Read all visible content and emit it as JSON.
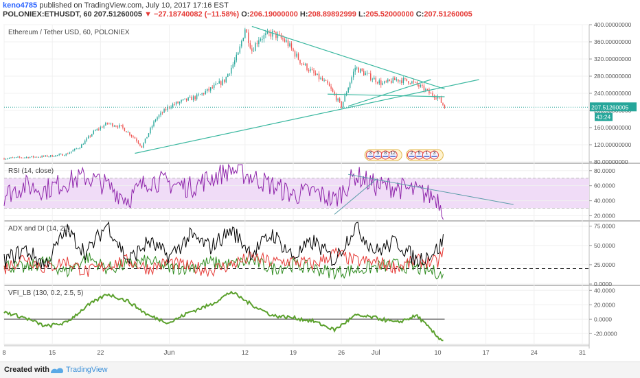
{
  "header": {
    "user": "keno4785",
    "published": "published on TradingView.com, July 10, 2017 17:16 EST",
    "symbol": "POLONIEX:ETHUSDT, 60",
    "last": "207.51260005",
    "change": "−27.18740082 (−11.58%)",
    "o_label": "O:",
    "o_value": "206.19000000",
    "h_label": "H:",
    "h_value": "208.89892999",
    "l_label": "L:",
    "l_value": "205.52000000",
    "c_label": "C:",
    "c_value": "207.51260005"
  },
  "footer": {
    "created": "Created with",
    "brand": "TradingView"
  },
  "colors": {
    "up": "#26a69a",
    "down": "#ef5350",
    "trend": "#3bb8a0",
    "rsi": "#8e24aa",
    "rsi_band": "#f0dcf7",
    "adx": "#000000",
    "di_plus": "#2e8b1f",
    "di_minus": "#e53935",
    "vfi": "#5aa02c",
    "price_label_bg": "#26a69a"
  },
  "chart_data": [
    {
      "type": "candlestick",
      "title": "Ethereum / Tether USD, 60, POLONIEX",
      "xlabel": "",
      "ylabel": "",
      "x_ticks": [
        "8",
        "15",
        "22",
        "Jun",
        "12",
        "19",
        "26",
        "Jul",
        "10",
        "17",
        "24",
        "31"
      ],
      "y_ticks": [
        "400.00000000",
        "360.00000000",
        "320.00000000",
        "280.00000000",
        "240.00000000",
        "200.00000000",
        "160.00000000",
        "120.00000000",
        "80.00000000"
      ],
      "ylim": [
        80,
        400
      ],
      "last_price_label": "207.51260005",
      "countdown_label": "43:24",
      "x": [
        "May 8",
        "May 10",
        "May 13",
        "May 15",
        "May 17",
        "May 19",
        "May 21",
        "May 23",
        "May 25",
        "May 27",
        "May 28",
        "May 30",
        "Jun 1",
        "Jun 3",
        "Jun 5",
        "Jun 7",
        "Jun 9",
        "Jun 11",
        "Jun 12",
        "Jun 13",
        "Jun 14",
        "Jun 16",
        "Jun 18",
        "Jun 20",
        "Jun 22",
        "Jun 24",
        "Jun 26",
        "Jun 27",
        "Jun 28",
        "Jun 30",
        "Jul 2",
        "Jul 4",
        "Jul 6",
        "Jul 8",
        "Jul 9",
        "Jul 10",
        "Jul 11"
      ],
      "close": [
        88,
        90,
        92,
        94,
        98,
        115,
        150,
        170,
        162,
        135,
        115,
        180,
        210,
        222,
        232,
        250,
        270,
        330,
        392,
        340,
        368,
        380,
        360,
        315,
        285,
        260,
        210,
        255,
        300,
        280,
        262,
        272,
        268,
        250,
        238,
        232,
        207
      ],
      "trendlines": [
        {
          "x": [
            "May 27",
            "Jul 16"
          ],
          "y": [
            100,
            272
          ]
        },
        {
          "x": [
            "Jun 13",
            "Jul 11"
          ],
          "y": [
            396,
            250
          ]
        },
        {
          "x": [
            "Jun 27",
            "Jul 9"
          ],
          "y": [
            210,
            272
          ]
        },
        {
          "x": [
            "Jun 24",
            "Jul 11"
          ],
          "y": [
            238,
            232
          ]
        }
      ],
      "events": [
        {
          "x": "Jul 1",
          "labels": [
            "3",
            "5",
            "8",
            "12"
          ]
        },
        {
          "x": "Jul 7",
          "labels": [
            "2",
            "5",
            "1",
            "3"
          ]
        }
      ]
    },
    {
      "type": "line",
      "title": "RSI (14, close)",
      "xlabel": "",
      "ylabel": "",
      "y_ticks": [
        "80.0000",
        "60.0000",
        "40.0000",
        "20.0000"
      ],
      "ylim": [
        15,
        88
      ],
      "bands": [
        30,
        70
      ],
      "x": [
        "May 8",
        "May 11",
        "May 14",
        "May 17",
        "May 20",
        "May 23",
        "May 26",
        "May 29",
        "Jun 1",
        "Jun 4",
        "Jun 7",
        "Jun 10",
        "Jun 13",
        "Jun 16",
        "Jun 19",
        "Jun 22",
        "Jun 25",
        "Jun 28",
        "Jul 1",
        "Jul 4",
        "Jul 7",
        "Jul 10",
        "Jul 11"
      ],
      "series": [
        {
          "values": [
            48,
            60,
            55,
            65,
            72,
            60,
            42,
            68,
            63,
            58,
            70,
            82,
            72,
            60,
            48,
            52,
            40,
            74,
            60,
            58,
            52,
            44,
            22
          ]
        }
      ],
      "trendlines": [
        {
          "x": [
            "Jun 27",
            "Jul 21"
          ],
          "y": [
            75,
            35
          ]
        },
        {
          "x": [
            "Jun 25",
            "Jul 1"
          ],
          "y": [
            22,
            68
          ]
        }
      ]
    },
    {
      "type": "line",
      "title": "ADX and DI (14, 20)",
      "xlabel": "",
      "ylabel": "",
      "y_ticks": [
        "75.0000",
        "50.0000",
        "25.0000",
        "0.0000"
      ],
      "ylim": [
        0,
        80
      ],
      "hline": 20,
      "x": [
        "May 8",
        "May 11",
        "May 14",
        "May 17",
        "May 20",
        "May 23",
        "May 26",
        "May 29",
        "Jun 1",
        "Jun 4",
        "Jun 7",
        "Jun 10",
        "Jun 13",
        "Jun 16",
        "Jun 19",
        "Jun 22",
        "Jun 25",
        "Jun 28",
        "Jul 1",
        "Jul 4",
        "Jul 7",
        "Jul 10",
        "Jul 11"
      ],
      "series": [
        {
          "values": [
            30,
            45,
            25,
            70,
            40,
            78,
            30,
            55,
            35,
            62,
            48,
            70,
            40,
            65,
            35,
            55,
            30,
            75,
            42,
            55,
            30,
            45,
            60
          ]
        },
        {
          "values": [
            25,
            20,
            30,
            15,
            35,
            20,
            25,
            30,
            20,
            22,
            28,
            25,
            30,
            20,
            25,
            20,
            15,
            18,
            22,
            25,
            20,
            15,
            8
          ]
        },
        {
          "values": [
            20,
            35,
            20,
            30,
            15,
            25,
            30,
            20,
            28,
            22,
            18,
            25,
            35,
            28,
            30,
            25,
            40,
            30,
            28,
            22,
            30,
            28,
            45
          ]
        }
      ]
    },
    {
      "type": "line",
      "title": "VFI_LB (130, 0.2, 2.5, 5)",
      "xlabel": "",
      "ylabel": "",
      "y_ticks": [
        "40.0000",
        "20.0000",
        "0.0000",
        "-20.0000"
      ],
      "ylim": [
        -35,
        45
      ],
      "hline": 0,
      "x": [
        "May 8",
        "May 11",
        "May 14",
        "May 17",
        "May 20",
        "May 23",
        "May 26",
        "May 29",
        "Jun 1",
        "Jun 4",
        "Jun 7",
        "Jun 10",
        "Jun 13",
        "Jun 16",
        "Jun 19",
        "Jun 22",
        "Jun 25",
        "Jun 28",
        "Jul 1",
        "Jul 4",
        "Jul 7",
        "Jul 10",
        "Jul 11"
      ],
      "series": [
        {
          "values": [
            10,
            2,
            -10,
            -5,
            18,
            35,
            25,
            5,
            -5,
            10,
            20,
            38,
            20,
            5,
            2,
            -3,
            -15,
            5,
            2,
            -5,
            5,
            -25,
            -30
          ]
        }
      ]
    }
  ]
}
